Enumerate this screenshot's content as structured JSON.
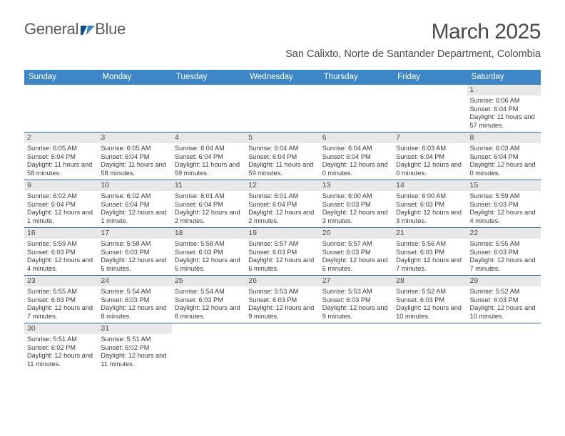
{
  "brand": {
    "part1": "General",
    "part2": "Blue"
  },
  "colors": {
    "header_bg": "#3d87c7",
    "header_text": "#ffffff",
    "divider": "#2d6aa3",
    "daynum_bg": "#e8e8e8",
    "body_text": "#3a3a3a",
    "title_text": "#4a4a4a",
    "logo_accent": "#1f66a8"
  },
  "title": "March 2025",
  "location": "San Calixto, Norte de Santander Department, Colombia",
  "day_names": [
    "Sunday",
    "Monday",
    "Tuesday",
    "Wednesday",
    "Thursday",
    "Friday",
    "Saturday"
  ],
  "weeks": [
    [
      {
        "n": "",
        "sr": "",
        "ss": "",
        "dl": ""
      },
      {
        "n": "",
        "sr": "",
        "ss": "",
        "dl": ""
      },
      {
        "n": "",
        "sr": "",
        "ss": "",
        "dl": ""
      },
      {
        "n": "",
        "sr": "",
        "ss": "",
        "dl": ""
      },
      {
        "n": "",
        "sr": "",
        "ss": "",
        "dl": ""
      },
      {
        "n": "",
        "sr": "",
        "ss": "",
        "dl": ""
      },
      {
        "n": "1",
        "sr": "Sunrise: 6:06 AM",
        "ss": "Sunset: 6:04 PM",
        "dl": "Daylight: 11 hours and 57 minutes."
      }
    ],
    [
      {
        "n": "2",
        "sr": "Sunrise: 6:05 AM",
        "ss": "Sunset: 6:04 PM",
        "dl": "Daylight: 11 hours and 58 minutes."
      },
      {
        "n": "3",
        "sr": "Sunrise: 6:05 AM",
        "ss": "Sunset: 6:04 PM",
        "dl": "Daylight: 11 hours and 58 minutes."
      },
      {
        "n": "4",
        "sr": "Sunrise: 6:04 AM",
        "ss": "Sunset: 6:04 PM",
        "dl": "Daylight: 11 hours and 59 minutes."
      },
      {
        "n": "5",
        "sr": "Sunrise: 6:04 AM",
        "ss": "Sunset: 6:04 PM",
        "dl": "Daylight: 11 hours and 59 minutes."
      },
      {
        "n": "6",
        "sr": "Sunrise: 6:04 AM",
        "ss": "Sunset: 6:04 PM",
        "dl": "Daylight: 12 hours and 0 minutes."
      },
      {
        "n": "7",
        "sr": "Sunrise: 6:03 AM",
        "ss": "Sunset: 6:04 PM",
        "dl": "Daylight: 12 hours and 0 minutes."
      },
      {
        "n": "8",
        "sr": "Sunrise: 6:03 AM",
        "ss": "Sunset: 6:04 PM",
        "dl": "Daylight: 12 hours and 0 minutes."
      }
    ],
    [
      {
        "n": "9",
        "sr": "Sunrise: 6:02 AM",
        "ss": "Sunset: 6:04 PM",
        "dl": "Daylight: 12 hours and 1 minute."
      },
      {
        "n": "10",
        "sr": "Sunrise: 6:02 AM",
        "ss": "Sunset: 6:04 PM",
        "dl": "Daylight: 12 hours and 1 minute."
      },
      {
        "n": "11",
        "sr": "Sunrise: 6:01 AM",
        "ss": "Sunset: 6:04 PM",
        "dl": "Daylight: 12 hours and 2 minutes."
      },
      {
        "n": "12",
        "sr": "Sunrise: 6:01 AM",
        "ss": "Sunset: 6:04 PM",
        "dl": "Daylight: 12 hours and 2 minutes."
      },
      {
        "n": "13",
        "sr": "Sunrise: 6:00 AM",
        "ss": "Sunset: 6:03 PM",
        "dl": "Daylight: 12 hours and 3 minutes."
      },
      {
        "n": "14",
        "sr": "Sunrise: 6:00 AM",
        "ss": "Sunset: 6:03 PM",
        "dl": "Daylight: 12 hours and 3 minutes."
      },
      {
        "n": "15",
        "sr": "Sunrise: 5:59 AM",
        "ss": "Sunset: 6:03 PM",
        "dl": "Daylight: 12 hours and 4 minutes."
      }
    ],
    [
      {
        "n": "16",
        "sr": "Sunrise: 5:59 AM",
        "ss": "Sunset: 6:03 PM",
        "dl": "Daylight: 12 hours and 4 minutes."
      },
      {
        "n": "17",
        "sr": "Sunrise: 5:58 AM",
        "ss": "Sunset: 6:03 PM",
        "dl": "Daylight: 12 hours and 5 minutes."
      },
      {
        "n": "18",
        "sr": "Sunrise: 5:58 AM",
        "ss": "Sunset: 6:03 PM",
        "dl": "Daylight: 12 hours and 5 minutes."
      },
      {
        "n": "19",
        "sr": "Sunrise: 5:57 AM",
        "ss": "Sunset: 6:03 PM",
        "dl": "Daylight: 12 hours and 6 minutes."
      },
      {
        "n": "20",
        "sr": "Sunrise: 5:57 AM",
        "ss": "Sunset: 6:03 PM",
        "dl": "Daylight: 12 hours and 6 minutes."
      },
      {
        "n": "21",
        "sr": "Sunrise: 5:56 AM",
        "ss": "Sunset: 6:03 PM",
        "dl": "Daylight: 12 hours and 7 minutes."
      },
      {
        "n": "22",
        "sr": "Sunrise: 5:55 AM",
        "ss": "Sunset: 6:03 PM",
        "dl": "Daylight: 12 hours and 7 minutes."
      }
    ],
    [
      {
        "n": "23",
        "sr": "Sunrise: 5:55 AM",
        "ss": "Sunset: 6:03 PM",
        "dl": "Daylight: 12 hours and 7 minutes."
      },
      {
        "n": "24",
        "sr": "Sunrise: 5:54 AM",
        "ss": "Sunset: 6:03 PM",
        "dl": "Daylight: 12 hours and 8 minutes."
      },
      {
        "n": "25",
        "sr": "Sunrise: 5:54 AM",
        "ss": "Sunset: 6:03 PM",
        "dl": "Daylight: 12 hours and 8 minutes."
      },
      {
        "n": "26",
        "sr": "Sunrise: 5:53 AM",
        "ss": "Sunset: 6:03 PM",
        "dl": "Daylight: 12 hours and 9 minutes."
      },
      {
        "n": "27",
        "sr": "Sunrise: 5:53 AM",
        "ss": "Sunset: 6:03 PM",
        "dl": "Daylight: 12 hours and 9 minutes."
      },
      {
        "n": "28",
        "sr": "Sunrise: 5:52 AM",
        "ss": "Sunset: 6:03 PM",
        "dl": "Daylight: 12 hours and 10 minutes."
      },
      {
        "n": "29",
        "sr": "Sunrise: 5:52 AM",
        "ss": "Sunset: 6:03 PM",
        "dl": "Daylight: 12 hours and 10 minutes."
      }
    ],
    [
      {
        "n": "30",
        "sr": "Sunrise: 5:51 AM",
        "ss": "Sunset: 6:02 PM",
        "dl": "Daylight: 12 hours and 11 minutes."
      },
      {
        "n": "31",
        "sr": "Sunrise: 5:51 AM",
        "ss": "Sunset: 6:02 PM",
        "dl": "Daylight: 12 hours and 11 minutes."
      },
      {
        "n": "",
        "sr": "",
        "ss": "",
        "dl": ""
      },
      {
        "n": "",
        "sr": "",
        "ss": "",
        "dl": ""
      },
      {
        "n": "",
        "sr": "",
        "ss": "",
        "dl": ""
      },
      {
        "n": "",
        "sr": "",
        "ss": "",
        "dl": ""
      },
      {
        "n": "",
        "sr": "",
        "ss": "",
        "dl": ""
      }
    ]
  ]
}
